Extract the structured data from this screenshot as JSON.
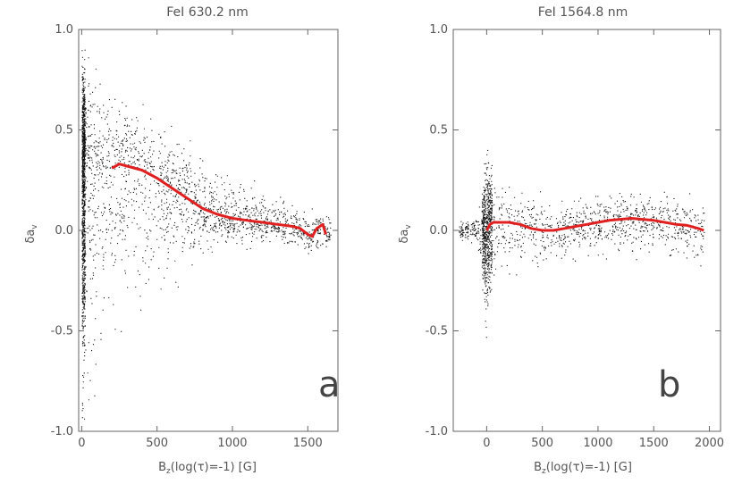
{
  "chart_data": [
    {
      "panel": "a",
      "type": "scatter",
      "title": "FeI 630.2 nm",
      "xlabel": "B_z(log(τ)=-1) [G]",
      "ylabel": "δa_v",
      "xlim": [
        -20,
        1700
      ],
      "ylim": [
        -1.0,
        1.0
      ],
      "xticks": [
        0,
        500,
        1000,
        1500
      ],
      "yticks": [
        1.0,
        0.5,
        0.0,
        -0.5,
        -1.0
      ],
      "xtick_labels": [
        "0",
        "500",
        "1000",
        "1500"
      ],
      "ytick_labels": [
        "1.0",
        "0.5",
        "0.0",
        "-0.5",
        "-1.0"
      ],
      "line_color": "#e02020",
      "mean_curve": {
        "x": [
          200,
          250,
          300,
          400,
          500,
          600,
          700,
          800,
          900,
          1000,
          1100,
          1200,
          1300,
          1400,
          1450,
          1500,
          1530,
          1560,
          1600,
          1620
        ],
        "y": [
          0.31,
          0.33,
          0.32,
          0.3,
          0.26,
          0.21,
          0.16,
          0.11,
          0.08,
          0.06,
          0.05,
          0.04,
          0.03,
          0.02,
          0.01,
          -0.02,
          -0.03,
          0.01,
          0.03,
          -0.02
        ]
      },
      "scatter_envelope": {
        "x": [
          0,
          100,
          200,
          300,
          400,
          500,
          600,
          700,
          800,
          900,
          1000,
          1100,
          1200,
          1300,
          1400,
          1500,
          1600,
          1650
        ],
        "upper": [
          0.95,
          0.85,
          0.75,
          0.7,
          0.68,
          0.62,
          0.55,
          0.47,
          0.4,
          0.33,
          0.3,
          0.27,
          0.23,
          0.18,
          0.15,
          0.12,
          0.1,
          0.08
        ],
        "lower": [
          -0.98,
          -0.85,
          -0.6,
          -0.5,
          -0.45,
          -0.38,
          -0.3,
          -0.25,
          -0.15,
          -0.1,
          -0.1,
          -0.1,
          -0.08,
          -0.06,
          -0.1,
          -0.15,
          -0.12,
          -0.05
        ]
      }
    },
    {
      "panel": "b",
      "type": "scatter",
      "title": "FeI 1564.8 nm",
      "xlabel": "B_z(log(τ)=-1) [G]",
      "ylabel": "δa_v",
      "xlim": [
        -300,
        2100
      ],
      "ylim": [
        -1.0,
        1.0
      ],
      "xticks": [
        0,
        500,
        1000,
        1500,
        2000
      ],
      "yticks": [
        1.0,
        0.5,
        0.0,
        -0.5,
        -1.0
      ],
      "xtick_labels": [
        "0",
        "500",
        "1000",
        "1500",
        "2000"
      ],
      "ytick_labels": [
        "1.0",
        "0.5",
        "0.0",
        "-0.5",
        "-1.0"
      ],
      "line_color": "#e02020",
      "mean_curve": {
        "x": [
          0,
          30,
          60,
          100,
          200,
          300,
          400,
          500,
          600,
          700,
          800,
          900,
          1000,
          1100,
          1200,
          1300,
          1400,
          1500,
          1600,
          1700,
          1800,
          1900,
          1950
        ],
        "y": [
          0.0,
          0.03,
          0.04,
          0.04,
          0.04,
          0.03,
          0.01,
          0.0,
          0.0,
          0.01,
          0.02,
          0.03,
          0.04,
          0.05,
          0.055,
          0.06,
          0.055,
          0.05,
          0.04,
          0.03,
          0.025,
          0.01,
          0.0
        ]
      },
      "scatter_envelope": {
        "x": [
          -250,
          -100,
          -30,
          0,
          30,
          100,
          200,
          400,
          600,
          800,
          1000,
          1200,
          1400,
          1600,
          1800,
          1950
        ],
        "upper": [
          0.05,
          0.08,
          0.3,
          0.55,
          0.35,
          0.28,
          0.25,
          0.22,
          0.2,
          0.2,
          0.2,
          0.22,
          0.22,
          0.2,
          0.2,
          0.15
        ],
        "lower": [
          -0.05,
          -0.08,
          -0.35,
          -0.6,
          -0.4,
          -0.3,
          -0.25,
          -0.2,
          -0.18,
          -0.15,
          -0.15,
          -0.15,
          -0.15,
          -0.15,
          -0.2,
          -0.2
        ]
      }
    }
  ]
}
